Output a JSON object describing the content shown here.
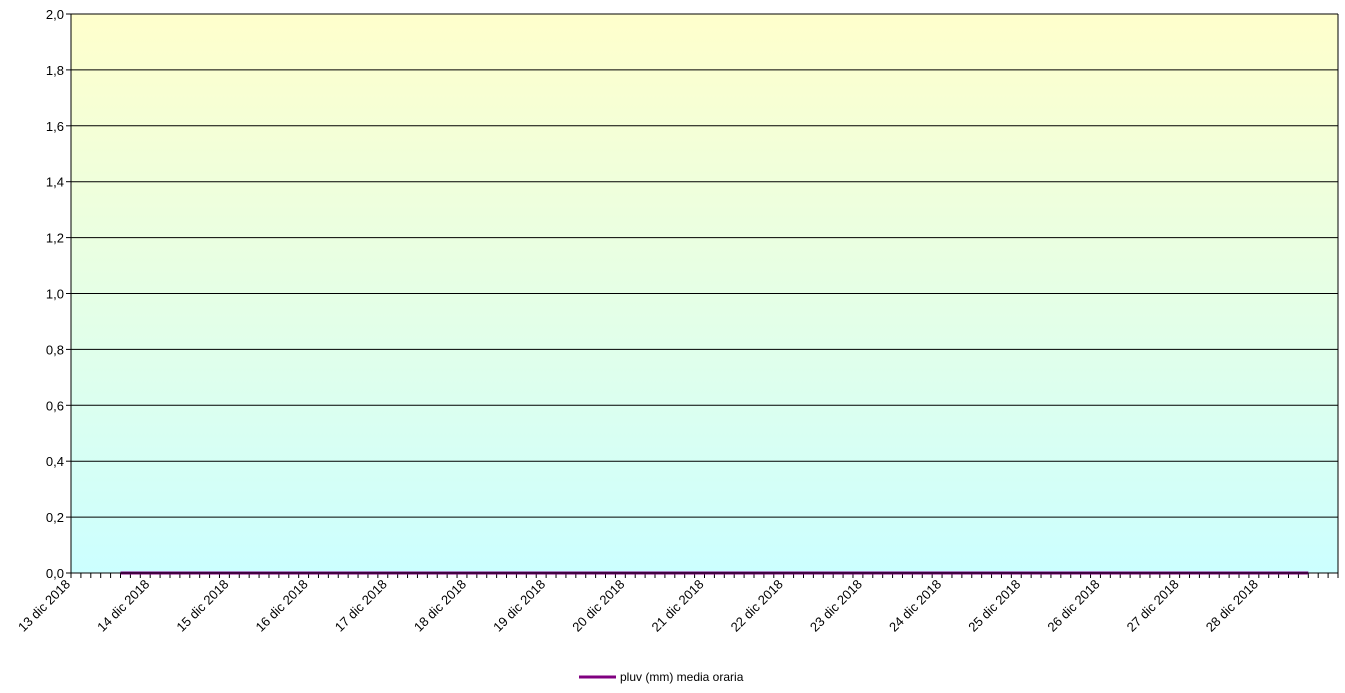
{
  "chart_data": {
    "type": "line",
    "title": "",
    "xlabel": "",
    "ylabel": "",
    "ylim": [
      0,
      2.0
    ],
    "y_ticks": [
      "0,0",
      "0,2",
      "0,4",
      "0,6",
      "0,8",
      "1,0",
      "1,2",
      "1,4",
      "1,6",
      "1,8",
      "2,0"
    ],
    "x_tick_labels": [
      "13 dic 2018",
      "14 dic 2018",
      "15 dic 2018",
      "16 dic 2018",
      "17 dic 2018",
      "18 dic 2018",
      "19 dic 2018",
      "20 dic 2018",
      "21 dic 2018",
      "22 dic 2018",
      "23 dic 2018",
      "24 dic 2018",
      "25 dic 2018",
      "26 dic 2018",
      "27 dic 2018",
      "28 dic 2018"
    ],
    "xlim": [
      "2018-12-13 00:00",
      "2018-12-29 00:00"
    ],
    "grid": true,
    "legend_position": "bottom-center",
    "series": [
      {
        "name": "pluv (mm) media oraria",
        "color": "#800080",
        "x_start": "2018-12-13 15:00",
        "x_end": "2018-12-28 15:00",
        "value": 0.0
      }
    ],
    "background_gradient": {
      "top": "#FFFFCC",
      "bottom": "#CCFFFF"
    }
  }
}
